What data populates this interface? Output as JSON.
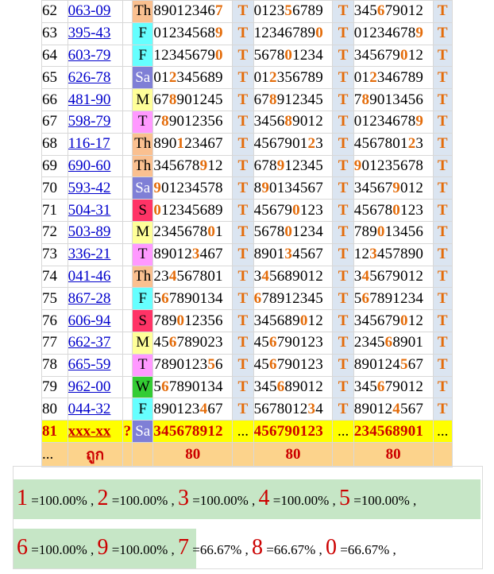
{
  "rows": [
    {
      "n": "62",
      "code": "063-09",
      "day": "Th",
      "d1": [
        "89012346",
        "7",
        ""
      ],
      "d2": [
        "0123",
        "5",
        "6789"
      ],
      "d3": [
        "345",
        "6",
        "79012"
      ],
      "t1": "T",
      "t2": "T",
      "t3": "T"
    },
    {
      "n": "63",
      "code": "395-43",
      "day": "F",
      "d1": [
        "01234568",
        "9",
        ""
      ],
      "d2": [
        "12346789",
        "0",
        ""
      ],
      "d3": [
        "01234678",
        "9",
        ""
      ],
      "t1": "T",
      "t2": "T",
      "t3": "T"
    },
    {
      "n": "64",
      "code": "603-79",
      "day": "F",
      "d1": [
        "12345679",
        "0",
        ""
      ],
      "d2": [
        "5678",
        "0",
        "1234"
      ],
      "d3": [
        "345679",
        "0",
        "12"
      ],
      "t1": "T",
      "t2": "T",
      "t3": "T"
    },
    {
      "n": "65",
      "code": "626-78",
      "day": "Sa",
      "d1": [
        "01",
        "2",
        "345689"
      ],
      "d2": [
        "01",
        "2",
        "356789"
      ],
      "d3": [
        "01",
        "2",
        "346789"
      ],
      "t1": "T",
      "t2": "T",
      "t3": "T"
    },
    {
      "n": "66",
      "code": "481-90",
      "day": "M",
      "d1": [
        "67",
        "8",
        "901245"
      ],
      "d2": [
        "67",
        "8",
        "912345"
      ],
      "d3": [
        "7",
        "8",
        "9013456"
      ],
      "t1": "T",
      "t2": "T",
      "t3": "T"
    },
    {
      "n": "67",
      "code": "598-79",
      "day": "T",
      "d1": [
        "7",
        "8",
        "9012356"
      ],
      "d2": [
        "3456",
        "8",
        "9012"
      ],
      "d3": [
        "01234678",
        "9",
        ""
      ],
      "t1": "T",
      "t2": "T",
      "t3": "T"
    },
    {
      "n": "68",
      "code": "116-17",
      "day": "Th",
      "d1": [
        "890",
        "1",
        "23467"
      ],
      "d2": [
        "4567901",
        "2",
        "3"
      ],
      "d3": [
        "4567801",
        "2",
        "3"
      ],
      "t1": "T",
      "t2": "T",
      "t3": "T"
    },
    {
      "n": "69",
      "code": "690-60",
      "day": "Th",
      "d1": [
        "345678",
        "9",
        "12"
      ],
      "d2": [
        "678",
        "9",
        "12345"
      ],
      "d3": [
        "",
        "9",
        "01235678"
      ],
      "t1": "T",
      "t2": "T",
      "t3": "T"
    },
    {
      "n": "70",
      "code": "593-42",
      "day": "Sa",
      "d1": [
        "",
        "9",
        "01234578"
      ],
      "d2": [
        "8",
        "9",
        "0134567"
      ],
      "d3": [
        "34567",
        "9",
        "012"
      ],
      "t1": "T",
      "t2": "T",
      "t3": "T"
    },
    {
      "n": "71",
      "code": "504-31",
      "day": "S",
      "d1": [
        "",
        "0",
        "12345689"
      ],
      "d2": [
        "45679",
        "0",
        "123"
      ],
      "d3": [
        "45678",
        "0",
        "123"
      ],
      "t1": "T",
      "t2": "T",
      "t3": "T"
    },
    {
      "n": "72",
      "code": "503-89",
      "day": "M",
      "d1": [
        "2345678",
        "0",
        "1"
      ],
      "d2": [
        "5678",
        "0",
        "1234"
      ],
      "d3": [
        "789",
        "0",
        "13456"
      ],
      "t1": "T",
      "t2": "T",
      "t3": "T"
    },
    {
      "n": "73",
      "code": "336-21",
      "day": "T",
      "d1": [
        "89012",
        "3",
        "467"
      ],
      "d2": [
        "8901",
        "3",
        "4567"
      ],
      "d3": [
        "12",
        "3",
        "457890"
      ],
      "t1": "T",
      "t2": "T",
      "t3": "T"
    },
    {
      "n": "74",
      "code": "041-46",
      "day": "Th",
      "d1": [
        "23",
        "4",
        "567801"
      ],
      "d2": [
        "3",
        "4",
        "5689012"
      ],
      "d3": [
        "3",
        "4",
        "5679012"
      ],
      "t1": "T",
      "t2": "T",
      "t3": "T"
    },
    {
      "n": "75",
      "code": "867-28",
      "day": "F",
      "d1": [
        "5",
        "6",
        "7890134"
      ],
      "d2": [
        "",
        "6",
        "78912345"
      ],
      "d3": [
        "5",
        "6",
        "7891234"
      ],
      "t1": "T",
      "t2": "T",
      "t3": "T"
    },
    {
      "n": "76",
      "code": "606-94",
      "day": "S",
      "d1": [
        "789",
        "0",
        "12356"
      ],
      "d2": [
        "345689",
        "0",
        "12"
      ],
      "d3": [
        "345679",
        "0",
        "12"
      ],
      "t1": "T",
      "t2": "T",
      "t3": "T"
    },
    {
      "n": "77",
      "code": "662-37",
      "day": "M",
      "d1": [
        "45",
        "6",
        "789023"
      ],
      "d2": [
        "45",
        "6",
        "790123"
      ],
      "d3": [
        "2345",
        "6",
        "8901"
      ],
      "t1": "T",
      "t2": "T",
      "t3": "T"
    },
    {
      "n": "78",
      "code": "665-59",
      "day": "T",
      "d1": [
        "7890123",
        "5",
        "6"
      ],
      "d2": [
        "45",
        "6",
        "790123"
      ],
      "d3": [
        "890124",
        "5",
        "67"
      ],
      "t1": "T",
      "t2": "T",
      "t3": "T"
    },
    {
      "n": "79",
      "code": "962-00",
      "day": "W",
      "d1": [
        "5",
        "6",
        "7890134"
      ],
      "d2": [
        "345",
        "6",
        "89012"
      ],
      "d3": [
        "345",
        "6",
        "79012"
      ],
      "t1": "T",
      "t2": "T",
      "t3": "T"
    },
    {
      "n": "80",
      "code": "044-32",
      "day": "F",
      "d1": [
        "890123",
        "4",
        "67"
      ],
      "d2": [
        "5678012",
        "3",
        "4"
      ],
      "d3": [
        "89012",
        "4",
        "567"
      ],
      "t1": "T",
      "t2": "T",
      "t3": "T"
    }
  ],
  "current": {
    "n": "81",
    "code": "xxx-xx",
    "q": "?",
    "day": "Sa",
    "d1": "345678912",
    "d2": "456790123",
    "d3": "234568901",
    "dots": "..."
  },
  "summary": {
    "n": "...",
    "label": "ถูก",
    "v1": "80",
    "v2": "80",
    "v3": "80"
  },
  "stats": {
    "line1": [
      {
        "digit": "1",
        "pct": "=100.00%",
        "sep": " , "
      },
      {
        "digit": "2",
        "pct": "=100.00%",
        "sep": " , "
      },
      {
        "digit": "3",
        "pct": "=100.00%",
        "sep": " , "
      },
      {
        "digit": "4",
        "pct": "=100.00%",
        "sep": " , "
      },
      {
        "digit": "5",
        "pct": "=100.00%",
        "sep": " ,"
      }
    ],
    "line2": [
      {
        "digit": "6",
        "pct": "=100.00%",
        "sep": " , "
      },
      {
        "digit": "9",
        "pct": "=100.00%",
        "sep": " , "
      },
      {
        "digit": "7",
        "pct": "=66.67%",
        "sep": " , "
      },
      {
        "digit": "8",
        "pct": "=66.67%",
        "sep": " , "
      },
      {
        "digit": "0",
        "pct": "=66.67%",
        "sep": " ,"
      }
    ]
  }
}
